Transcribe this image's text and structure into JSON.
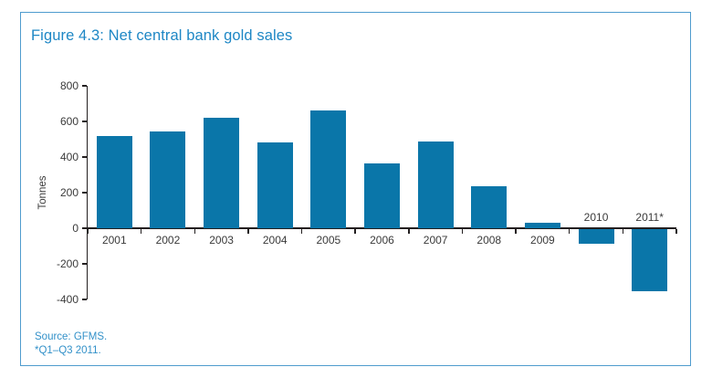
{
  "figure": {
    "title": "Figure 4.3: Net central bank gold sales",
    "source": "Source: GFMS.",
    "footnote": "*Q1–Q3 2011.",
    "border_color": "#4f9cce",
    "title_color": "#1e87c5",
    "note_color": "#3391c9"
  },
  "chart_data": {
    "type": "bar",
    "title": "Figure 4.3: Net central bank gold sales",
    "ylabel": "Tonnes",
    "xlabel": "",
    "categories": [
      "2001",
      "2002",
      "2003",
      "2004",
      "2005",
      "2006",
      "2007",
      "2008",
      "2009",
      "2010",
      "2011*"
    ],
    "values": [
      520,
      545,
      620,
      480,
      660,
      365,
      485,
      235,
      30,
      -80,
      -350
    ],
    "ylim": [
      -400,
      800
    ],
    "yticks": [
      800,
      600,
      400,
      200,
      0,
      -200,
      -400
    ],
    "grid": false,
    "legend": false,
    "bar_color": "#0a76a9",
    "axis_color": "#231f20",
    "tick_label_color": "#3a3a3a",
    "source": "Source: GFMS.",
    "footnote": "*Q1–Q3 2011."
  }
}
